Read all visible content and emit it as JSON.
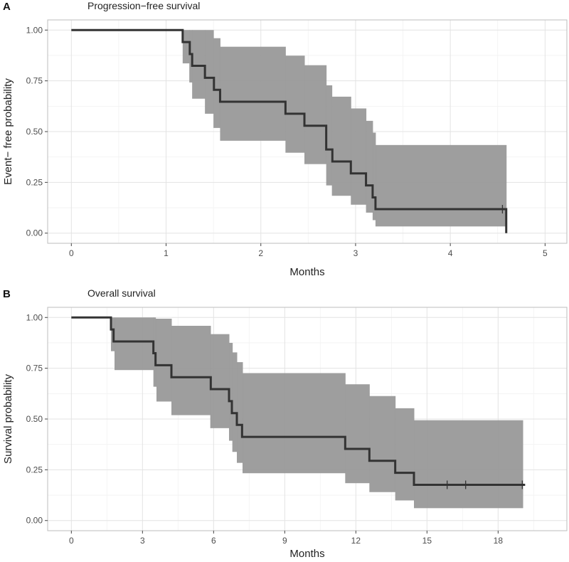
{
  "chart_data": [
    {
      "type": "line",
      "subtype": "kaplan-meier step curve with confidence band",
      "panel_label": "A",
      "title": "Progression−free survival",
      "xlabel": "Months",
      "ylabel": "Event− free probability",
      "xlim": [
        -0.25,
        5.23
      ],
      "ylim": [
        -0.05,
        1.05
      ],
      "x_ticks": [
        0,
        1,
        2,
        3,
        4,
        5
      ],
      "x_tick_labels": [
        "0",
        "1",
        "2",
        "3",
        "4",
        "5"
      ],
      "y_ticks": [
        0,
        0.25,
        0.5,
        0.75,
        1
      ],
      "y_tick_labels": [
        "0.00",
        "0.25",
        "0.50",
        "0.75",
        "1.00"
      ],
      "grid": true,
      "line_color": "#333333",
      "band_color": "#999999",
      "survival": [
        [
          0,
          1.0
        ],
        [
          1.175,
          0.941
        ],
        [
          1.25,
          0.882
        ],
        [
          1.275,
          0.824
        ],
        [
          1.41,
          0.765
        ],
        [
          1.505,
          0.706
        ],
        [
          1.57,
          0.647
        ],
        [
          2.26,
          0.588
        ],
        [
          2.46,
          0.529
        ],
        [
          2.69,
          0.412
        ],
        [
          2.755,
          0.353
        ],
        [
          2.95,
          0.294
        ],
        [
          3.11,
          0.235
        ],
        [
          3.18,
          0.176
        ],
        [
          3.21,
          0.118
        ],
        [
          4.59,
          0.0
        ]
      ],
      "end_time": 4.59,
      "censored": [
        4.55
      ],
      "ci_upper": [
        [
          1.175,
          1.0
        ],
        [
          1.5,
          0.96
        ],
        [
          1.57,
          0.918
        ],
        [
          2.26,
          0.874
        ],
        [
          2.46,
          0.827
        ],
        [
          2.69,
          0.728
        ],
        [
          2.75,
          0.672
        ],
        [
          2.95,
          0.614
        ],
        [
          3.11,
          0.553
        ],
        [
          3.18,
          0.495
        ],
        [
          3.21,
          0.434
        ]
      ],
      "ci_lower": [
        [
          1.175,
          0.836
        ],
        [
          1.245,
          0.742
        ],
        [
          1.275,
          0.662
        ],
        [
          1.41,
          0.588
        ],
        [
          1.5,
          0.518
        ],
        [
          1.57,
          0.455
        ],
        [
          2.26,
          0.396
        ],
        [
          2.46,
          0.34
        ],
        [
          2.69,
          0.235
        ],
        [
          2.75,
          0.184
        ],
        [
          2.95,
          0.14
        ],
        [
          3.11,
          0.101
        ],
        [
          3.18,
          0.064
        ],
        [
          3.21,
          0.033
        ]
      ],
      "ci_end": 4.59
    },
    {
      "type": "line",
      "subtype": "kaplan-meier step curve with confidence band",
      "panel_label": "B",
      "title": "Overall survival",
      "xlabel": "Months",
      "ylabel": "Survival probability",
      "xlim": [
        -1,
        20.9
      ],
      "ylim": [
        -0.05,
        1.05
      ],
      "x_ticks": [
        0,
        3,
        6,
        9,
        12,
        15,
        18
      ],
      "x_tick_labels": [
        "0",
        "3",
        "6",
        "9",
        "12",
        "15",
        "18"
      ],
      "y_ticks": [
        0,
        0.25,
        0.5,
        0.75,
        1
      ],
      "y_tick_labels": [
        "0.00",
        "0.25",
        "0.50",
        "0.75",
        "1.00"
      ],
      "grid": true,
      "line_color": "#333333",
      "band_color": "#999999",
      "survival": [
        [
          0,
          1.0
        ],
        [
          1.67,
          0.941
        ],
        [
          1.78,
          0.882
        ],
        [
          3.46,
          0.824
        ],
        [
          3.55,
          0.765
        ],
        [
          4.22,
          0.706
        ],
        [
          5.88,
          0.647
        ],
        [
          6.65,
          0.588
        ],
        [
          6.77,
          0.529
        ],
        [
          6.98,
          0.471
        ],
        [
          7.2,
          0.412
        ],
        [
          11.55,
          0.353
        ],
        [
          12.57,
          0.294
        ],
        [
          13.66,
          0.235
        ],
        [
          14.45,
          0.176
        ]
      ],
      "end_time": 19.14,
      "censored": [
        15.85,
        16.63,
        19.02
      ],
      "ci_upper": [
        [
          1.67,
          1.0
        ],
        [
          3.55,
          0.994
        ],
        [
          4.22,
          0.959
        ],
        [
          5.87,
          0.918
        ],
        [
          6.65,
          0.875
        ],
        [
          6.79,
          0.828
        ],
        [
          6.98,
          0.78
        ],
        [
          7.22,
          0.726
        ],
        [
          11.55,
          0.671
        ],
        [
          12.57,
          0.613
        ],
        [
          13.66,
          0.553
        ],
        [
          14.45,
          0.494
        ]
      ],
      "ci_lower": [
        [
          1.67,
          0.834
        ],
        [
          1.82,
          0.741
        ],
        [
          3.46,
          0.659
        ],
        [
          3.59,
          0.586
        ],
        [
          4.22,
          0.519
        ],
        [
          5.86,
          0.455
        ],
        [
          6.65,
          0.393
        ],
        [
          6.79,
          0.338
        ],
        [
          6.98,
          0.284
        ],
        [
          7.22,
          0.233
        ],
        [
          11.55,
          0.184
        ],
        [
          12.57,
          0.14
        ],
        [
          13.66,
          0.099
        ],
        [
          14.45,
          0.061
        ]
      ],
      "ci_end": 19.04
    }
  ]
}
